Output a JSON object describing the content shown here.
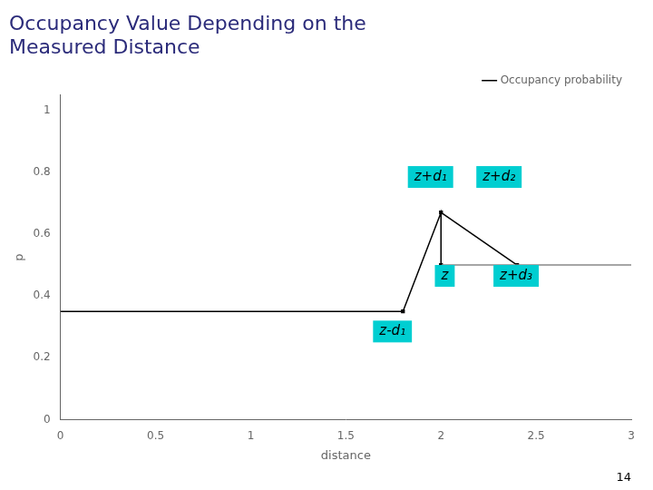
{
  "chart_data": {
    "type": "line",
    "title": [
      "Occupancy Value Depending on the",
      "Measured Distance"
    ],
    "subtitle": "14",
    "x_label": "distance",
    "y_label": "p",
    "xlim": [
      0,
      3
    ],
    "ylim": [
      0,
      1.05
    ],
    "xticks": [
      0,
      0.5,
      1,
      1.5,
      2,
      2.5,
      3
    ],
    "yticks": [
      0,
      0.2,
      0.4,
      0.6,
      0.8,
      1
    ],
    "grid": false,
    "legend": "upper right",
    "series": [
      {
        "name": "Occupancy probability",
        "color": "#000000",
        "marker": "none",
        "line_style": "solid",
        "x": [
          0,
          1.8,
          2.0,
          2.0
        ],
        "values": [
          0.35,
          0.35,
          0.67,
          0.5
        ]
      },
      {
        "color": "#888888",
        "marker": "none",
        "line_style": "solid",
        "x": [
          2.0,
          2.4,
          3.0
        ],
        "values": [
          0.5,
          0.5,
          0.5
        ]
      },
      {
        "color": "#000000",
        "marker": "none",
        "line_style": "solid",
        "x": [
          2.0,
          2.4
        ],
        "values": [
          0.67,
          0.5
        ]
      },
      {
        "type": "scatter",
        "color": "#000000",
        "marker": "square",
        "x": [
          1.8,
          2.0,
          2.0,
          2.4
        ],
        "values": [
          0.35,
          0.67,
          0.5,
          0.5
        ]
      }
    ],
    "annotations": [
      {
        "text": "z-d₁",
        "x": 1.745,
        "y": 0.285,
        "color": "#00CED1"
      },
      {
        "text": "z+d₁",
        "x": 1.945,
        "y": 0.785,
        "color": "#00CED1"
      },
      {
        "text": "z+d₂",
        "x": 2.305,
        "y": 0.785,
        "color": "#00CED1"
      },
      {
        "text": "z",
        "x": 2.02,
        "y": 0.465,
        "color": "#00CED1"
      },
      {
        "text": "z+d₃",
        "x": 2.395,
        "y": 0.465,
        "color": "#00CED1"
      }
    ]
  }
}
